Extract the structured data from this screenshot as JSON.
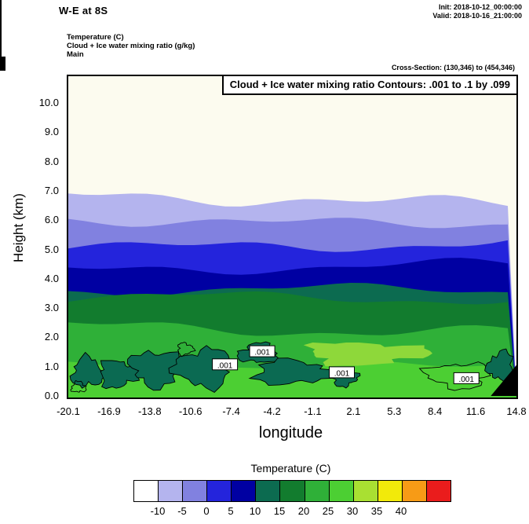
{
  "header": {
    "title": "W-E at 8S",
    "init_label": "Init: 2018-10-12_00:00:00",
    "valid_label": "Valid: 2018-10-16_21:00:00",
    "field_lines": [
      "Temperature  (C)",
      "Cloud + Ice water mixing ratio  (g/kg)",
      "Main"
    ],
    "cross_section": "Cross-Section: (130,346) to (454,346)"
  },
  "plot": {
    "title_box": "Cloud + Ice water mixing ratio Contours: .001 to .1 by .099",
    "xlabel": "longitude",
    "ylabel": "Height (km)"
  },
  "colorbar": {
    "title": "Temperature  (C)",
    "colors": [
      "#ffffff",
      "#b4b4ee",
      "#8181e0",
      "#2424dc",
      "#0000a2",
      "#0c6b50",
      "#127c2e",
      "#2fb038",
      "#4ccf33",
      "#a9e032",
      "#f2ea0a",
      "#f79b16",
      "#ea1c1c"
    ],
    "tick_labels": [
      "-10",
      "-5",
      "0",
      "5",
      "10",
      "15",
      "20",
      "25",
      "30",
      "35",
      "40"
    ]
  },
  "chart_data": {
    "type": "heatmap",
    "title": "Temperature (C) filled cross-section with Cloud + Ice water mixing ratio contours (.001 to .1 by .099 g/kg)",
    "xlabel": "longitude",
    "ylabel": "Height (km)",
    "x_range": [
      -20.1,
      14.8
    ],
    "y_range_km": [
      0,
      10.9
    ],
    "x_ticks": [
      "-20.1",
      "-16.9",
      "-13.8",
      "-10.6",
      "-7.4",
      "-4.2",
      "-1.1",
      "2.1",
      "5.3",
      "8.4",
      "11.6",
      "14.8"
    ],
    "y_ticks": [
      "0.0",
      "1.0",
      "2.0",
      "3.0",
      "4.0",
      "5.0",
      "6.0",
      "7.0",
      "8.0",
      "9.0",
      "10.0"
    ],
    "cloud_contour_levels": [
      0.001,
      0.1
    ],
    "cloud_fill_color": "#0b6a52",
    "bands": [
      {
        "temp_range": "< -10",
        "color": "#fcfbef",
        "top_km": null
      },
      {
        "temp_range": "-10 to -5",
        "color": "#b4b4ee",
        "top_km": 6.68,
        "wave": 0.2
      },
      {
        "temp_range": "-5 to 0",
        "color": "#8181e0",
        "top_km": 5.98,
        "wave": 0.16
      },
      {
        "temp_range": "0 to 5",
        "color": "#2424dc",
        "top_km": 5.18,
        "wave": 0.16
      },
      {
        "temp_range": "5 to 10",
        "color": "#0000a2",
        "top_km": 4.38,
        "wave": 0.15
      },
      {
        "temp_range": "10 to 15",
        "color": "#0c6b50",
        "top_km": 3.58,
        "wave": 0.13
      },
      {
        "temp_range": "15 to 20",
        "color": "#127c2e",
        "top_km": 3.32,
        "wave": 0.13
      },
      {
        "temp_range": "20 to 25",
        "color": "#2fb038",
        "top_km": 2.28,
        "wave": 0.16
      },
      {
        "temp_range": "25 to 30",
        "color": "#4ccf33",
        "top_km": 1.06,
        "wave": 0.13
      }
    ],
    "warm_patch": {
      "lon": 3.0,
      "km": 1.45,
      "rlon": 4.6,
      "rkm": 0.38,
      "color": "#8ed83a"
    },
    "cloud_regions": [
      {
        "lon": -18.6,
        "km": 0.8,
        "rlon": 1.2,
        "rkm": 0.5,
        "filled": true
      },
      {
        "lon": -16.2,
        "km": 0.75,
        "rlon": 1.5,
        "rkm": 0.45,
        "filled": true
      },
      {
        "lon": -13.2,
        "km": 0.95,
        "rlon": 2.0,
        "rkm": 0.6,
        "filled": true
      },
      {
        "lon": -9.6,
        "km": 0.95,
        "rlon": 2.1,
        "rkm": 0.65,
        "filled": true
      },
      {
        "lon": -5.3,
        "km": 1.45,
        "rlon": 1.5,
        "rkm": 0.33,
        "filled": true
      },
      {
        "lon": -2.6,
        "km": 0.8,
        "rlon": 3.0,
        "rkm": 0.4,
        "filled": true
      },
      {
        "lon": 1.4,
        "km": 0.62,
        "rlon": 1.0,
        "rkm": 0.28,
        "filled": true
      },
      {
        "lon": 10.3,
        "km": 0.7,
        "rlon": 2.4,
        "rkm": 0.42,
        "filled": false
      },
      {
        "lon": 13.6,
        "km": 1.0,
        "rlon": 1.0,
        "rkm": 0.5,
        "filled": true
      },
      {
        "lon": -19.3,
        "km": 0.3,
        "rlon": 0.55,
        "rkm": 0.18,
        "filled": false
      },
      {
        "lon": -11.0,
        "km": 1.6,
        "rlon": 0.6,
        "rkm": 0.2,
        "filled": false
      }
    ],
    "contour_labels": [
      {
        "text": ".001",
        "lon": -7.9,
        "km": 1.05,
        "boxed": true
      },
      {
        "text": ".001",
        "lon": -5.0,
        "km": 1.5,
        "boxed": true
      },
      {
        "text": ".001",
        "lon": 1.2,
        "km": 0.78,
        "boxed": true
      },
      {
        "text": ".001",
        "lon": 10.9,
        "km": 0.58,
        "boxed": true
      }
    ],
    "terrain": {
      "color": "#000000",
      "points_lon_km": [
        [
          12.8,
          0
        ],
        [
          14.8,
          0
        ],
        [
          14.8,
          1.05
        ]
      ]
    }
  }
}
